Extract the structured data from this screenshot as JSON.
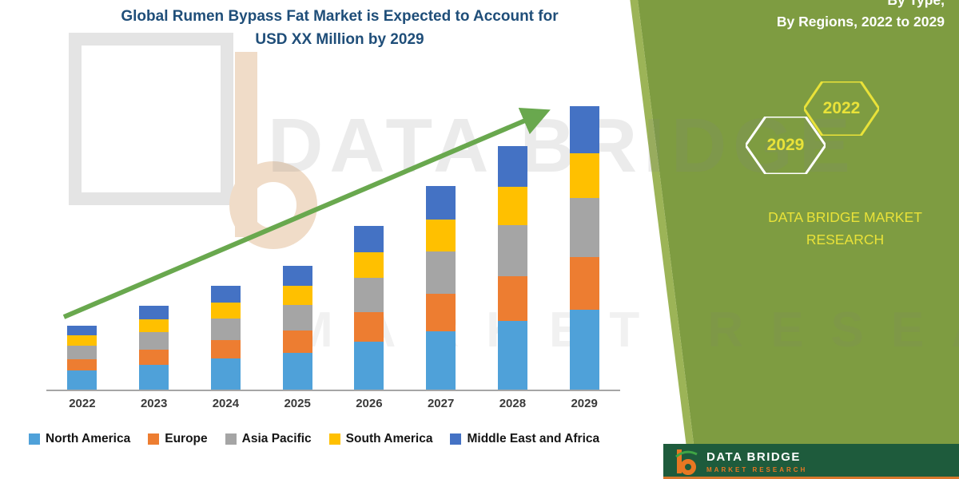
{
  "title": {
    "line1": "Global Rumen Bypass Fat Market is Expected to Account for",
    "line2": "USD XX Million by 2029"
  },
  "chart_data": {
    "type": "bar",
    "stacked": true,
    "title": "Global Rumen Bypass Fat Market is Expected to Account for USD XX Million by 2029",
    "categories": [
      "2022",
      "2023",
      "2024",
      "2025",
      "2026",
      "2027",
      "2028",
      "2029"
    ],
    "series": [
      {
        "name": "North America",
        "color": "#4FA1D9",
        "values": [
          2.4,
          3.1,
          3.9,
          4.6,
          6.0,
          7.3,
          8.6,
          10.0
        ]
      },
      {
        "name": "Europe",
        "color": "#ED7D31",
        "values": [
          1.4,
          1.9,
          2.3,
          2.8,
          3.7,
          4.7,
          5.6,
          6.6
        ]
      },
      {
        "name": "Asia Pacific",
        "color": "#A5A5A5",
        "values": [
          1.7,
          2.2,
          2.7,
          3.2,
          4.3,
          5.3,
          6.4,
          7.4
        ]
      },
      {
        "name": "South America",
        "color": "#FFC000",
        "values": [
          1.3,
          1.6,
          2.0,
          2.4,
          3.2,
          4.0,
          4.8,
          5.6
        ]
      },
      {
        "name": "Middle East and Africa",
        "color": "#4472C4",
        "values": [
          1.2,
          1.7,
          2.1,
          2.5,
          3.3,
          4.2,
          5.1,
          5.9
        ]
      }
    ],
    "xlabel": "",
    "ylabel": "",
    "ylim": [
      0,
      38
    ],
    "grid": false,
    "legend_position": "bottom",
    "trend_arrow": true,
    "trend_arrow_color": "#69A84E"
  },
  "watermark": {
    "line1": "DATA BRIDGE",
    "line2": "MARKET RESEAR"
  },
  "side_panel": {
    "heading_line1": "By Type,",
    "heading_line2": "By Regions, 2022 to 2029",
    "hexagon_left": "2029",
    "hexagon_right": "2022",
    "brand_line1": "DATA BRIDGE MARKET",
    "brand_line2": "RESEARCH",
    "panel_color": "#7E9C41",
    "accent_yellow": "#E9E239"
  },
  "footer": {
    "brand": "DATA BRIDGE",
    "sub_brand": "MARKET RESEARCH",
    "bg_color": "#1E5B3C",
    "accent_orange": "#D9782D"
  }
}
